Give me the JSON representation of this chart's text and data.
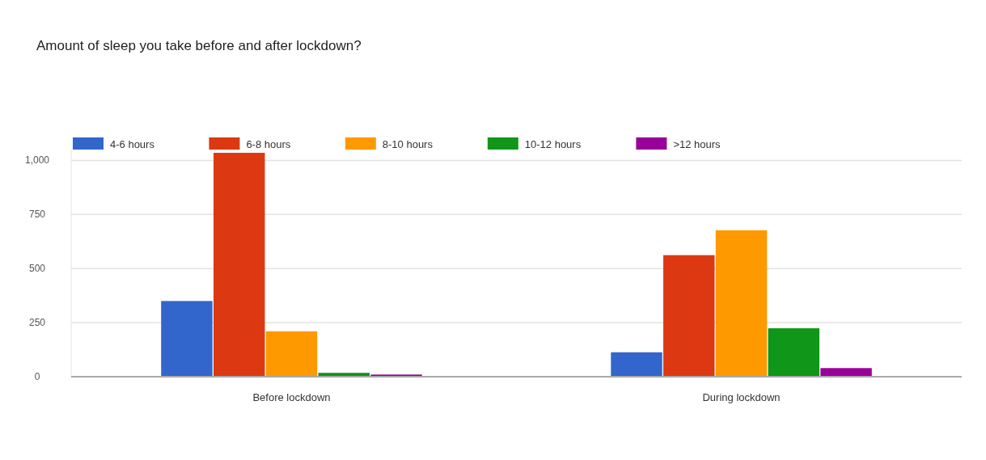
{
  "chart_data": {
    "type": "bar",
    "title": "Amount of sleep you take before and after lockdown?",
    "categories": [
      "Before lockdown",
      "During lockdown"
    ],
    "series": [
      {
        "name": "4-6 hours",
        "color": "#3366cc",
        "values": [
          350,
          113
        ]
      },
      {
        "name": "6-8 hours",
        "color": "#dc3912",
        "values": [
          1035,
          562
        ]
      },
      {
        "name": "8-10 hours",
        "color": "#ff9900",
        "values": [
          210,
          677
        ]
      },
      {
        "name": "10-12 hours",
        "color": "#109618",
        "values": [
          18,
          224
        ]
      },
      {
        "name": ">12 hours",
        "color": "#990099",
        "values": [
          10,
          40
        ]
      }
    ],
    "ylim": [
      0,
      1050
    ],
    "yticks": [
      0,
      {
        "value": 250,
        "label": "250"
      },
      {
        "value": 500,
        "label": "500"
      },
      {
        "value": 750,
        "label": "750"
      },
      {
        "value": 1000,
        "label": "1,000"
      }
    ],
    "grid": "y",
    "legend": "top"
  }
}
